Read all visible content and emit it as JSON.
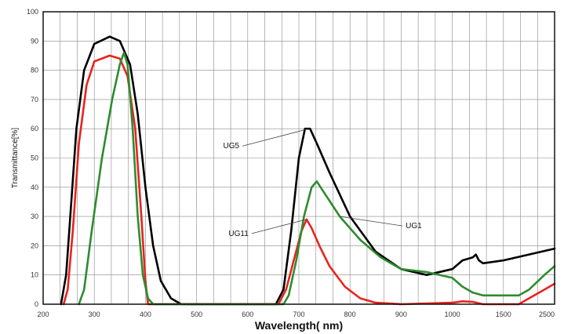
{
  "chart_data": {
    "type": "line",
    "title": "",
    "xlabel": "Wavelength( nm)",
    "ylabel": "Transmittance[%]",
    "grid": true,
    "ylim": [
      0,
      100
    ],
    "y_ticks": [
      "0",
      "10",
      "20",
      "30",
      "40",
      "50",
      "60",
      "70",
      "80",
      "90",
      "100"
    ],
    "x_ticks": [
      "200",
      "300",
      "400",
      "500",
      "600",
      "700",
      "800",
      "900",
      "1000",
      "1500",
      "2500"
    ],
    "colors": {
      "UG5": "#000000",
      "UG11": "#e8231e",
      "UG1": "#2e8b2e",
      "grid": "#888888"
    },
    "annotations": [
      {
        "text": "UG5",
        "series": "UG5",
        "at_x": 720
      },
      {
        "text": "UG1",
        "series": "UG1",
        "at_x": 780
      },
      {
        "text": "UG11",
        "series": "UG11",
        "at_x": 715
      }
    ],
    "series": [
      {
        "name": "UG5",
        "color": "#000000",
        "points": [
          [
            235,
            0
          ],
          [
            245,
            10
          ],
          [
            255,
            35
          ],
          [
            265,
            60
          ],
          [
            280,
            80
          ],
          [
            300,
            89
          ],
          [
            330,
            91.5
          ],
          [
            350,
            90
          ],
          [
            370,
            82
          ],
          [
            385,
            65
          ],
          [
            400,
            40
          ],
          [
            415,
            20
          ],
          [
            430,
            8
          ],
          [
            450,
            2
          ],
          [
            470,
            0
          ],
          [
            655,
            0
          ],
          [
            670,
            5
          ],
          [
            685,
            25
          ],
          [
            700,
            50
          ],
          [
            712,
            60
          ],
          [
            722,
            60
          ],
          [
            735,
            55
          ],
          [
            760,
            45
          ],
          [
            800,
            30
          ],
          [
            850,
            18
          ],
          [
            900,
            12
          ],
          [
            950,
            10
          ],
          [
            1000,
            12
          ],
          [
            1100,
            15
          ],
          [
            1200,
            16
          ],
          [
            1230,
            17
          ],
          [
            1260,
            15
          ],
          [
            1300,
            14
          ],
          [
            1500,
            15
          ],
          [
            2000,
            17
          ],
          [
            2500,
            19
          ]
        ]
      },
      {
        "name": "UG11",
        "color": "#e8231e",
        "points": [
          [
            240,
            0
          ],
          [
            248,
            5
          ],
          [
            258,
            25
          ],
          [
            270,
            55
          ],
          [
            285,
            75
          ],
          [
            300,
            83
          ],
          [
            330,
            85
          ],
          [
            350,
            84
          ],
          [
            365,
            78
          ],
          [
            380,
            60
          ],
          [
            392,
            30
          ],
          [
            400,
            8
          ],
          [
            405,
            0
          ],
          [
            660,
            0
          ],
          [
            675,
            5
          ],
          [
            690,
            15
          ],
          [
            705,
            25
          ],
          [
            715,
            29
          ],
          [
            725,
            26
          ],
          [
            740,
            20
          ],
          [
            760,
            13
          ],
          [
            790,
            6
          ],
          [
            820,
            2
          ],
          [
            850,
            0.5
          ],
          [
            900,
            0
          ],
          [
            1000,
            0.5
          ],
          [
            1100,
            1
          ],
          [
            1200,
            0.8
          ],
          [
            1300,
            0
          ],
          [
            1500,
            0
          ],
          [
            1800,
            0
          ],
          [
            2000,
            2
          ],
          [
            2300,
            5
          ],
          [
            2500,
            7
          ]
        ]
      },
      {
        "name": "UG1",
        "color": "#2e8b2e",
        "points": [
          [
            270,
            0
          ],
          [
            280,
            5
          ],
          [
            295,
            25
          ],
          [
            315,
            50
          ],
          [
            335,
            70
          ],
          [
            350,
            82
          ],
          [
            358,
            86
          ],
          [
            365,
            82
          ],
          [
            375,
            60
          ],
          [
            385,
            30
          ],
          [
            395,
            10
          ],
          [
            405,
            2
          ],
          [
            415,
            0
          ],
          [
            670,
            0
          ],
          [
            680,
            3
          ],
          [
            695,
            15
          ],
          [
            710,
            30
          ],
          [
            725,
            40
          ],
          [
            735,
            42
          ],
          [
            750,
            38
          ],
          [
            780,
            30
          ],
          [
            820,
            22
          ],
          [
            860,
            16
          ],
          [
            900,
            12
          ],
          [
            950,
            11
          ],
          [
            1000,
            9
          ],
          [
            1100,
            6
          ],
          [
            1200,
            4
          ],
          [
            1300,
            3
          ],
          [
            1500,
            3
          ],
          [
            1800,
            3
          ],
          [
            2000,
            5
          ],
          [
            2300,
            10
          ],
          [
            2500,
            13
          ]
        ]
      }
    ]
  }
}
